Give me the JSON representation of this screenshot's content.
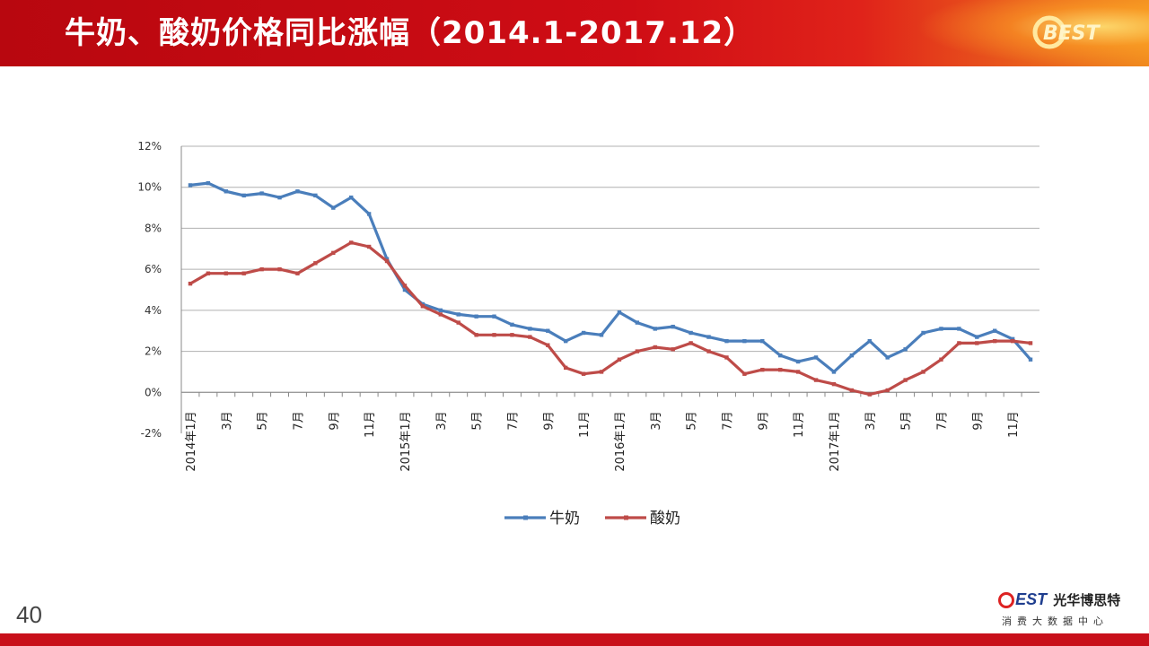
{
  "slide": {
    "title": "牛奶、酸奶价格同比涨幅（2014.1-2017.12）",
    "page_number": "40",
    "brand_name": "光华博思特",
    "brand_logo_text": "EST",
    "brand_subtitle": "消费大数据中心",
    "header_logo_text": "BEST"
  },
  "chart_data": {
    "type": "line",
    "x": [
      "2014年1月",
      "2月",
      "3月",
      "4月",
      "5月",
      "6月",
      "7月",
      "8月",
      "9月",
      "10月",
      "11月",
      "12月",
      "2015年1月",
      "2月",
      "3月",
      "4月",
      "5月",
      "6月",
      "7月",
      "8月",
      "9月",
      "10月",
      "11月",
      "12月",
      "2016年1月",
      "2月",
      "3月",
      "4月",
      "5月",
      "6月",
      "7月",
      "8月",
      "9月",
      "10月",
      "11月",
      "12月",
      "2017年1月",
      "2月",
      "3月",
      "4月",
      "5月",
      "6月",
      "7月",
      "8月",
      "9月",
      "10月",
      "11月",
      "12月"
    ],
    "tick_labels": [
      "2014年1月",
      "",
      "3月",
      "",
      "5月",
      "",
      "7月",
      "",
      "9月",
      "",
      "11月",
      "",
      "2015年1月",
      "",
      "3月",
      "",
      "5月",
      "",
      "7月",
      "",
      "9月",
      "",
      "11月",
      "",
      "2016年1月",
      "",
      "3月",
      "",
      "5月",
      "",
      "7月",
      "",
      "9月",
      "",
      "11月",
      "",
      "2017年1月",
      "",
      "3月",
      "",
      "5月",
      "",
      "7月",
      "",
      "9月",
      "",
      "11月",
      ""
    ],
    "series": [
      {
        "name": "牛奶",
        "color": "#4a7ebb",
        "values": [
          10.1,
          10.2,
          9.8,
          9.6,
          9.7,
          9.5,
          9.8,
          9.6,
          9.0,
          9.5,
          8.7,
          6.5,
          5.0,
          4.3,
          4.0,
          3.8,
          3.7,
          3.7,
          3.3,
          3.1,
          3.0,
          2.5,
          2.9,
          2.8,
          3.9,
          3.4,
          3.1,
          3.2,
          2.9,
          2.7,
          2.5,
          2.5,
          2.5,
          1.8,
          1.5,
          1.7,
          1.0,
          1.8,
          2.5,
          1.7,
          2.1,
          2.9,
          3.1,
          3.1,
          2.7,
          3.0,
          2.6,
          1.6
        ]
      },
      {
        "name": "酸奶",
        "color": "#be4b48",
        "values": [
          5.3,
          5.8,
          5.8,
          5.8,
          6.0,
          6.0,
          5.8,
          6.3,
          6.8,
          7.3,
          7.1,
          6.4,
          5.2,
          4.2,
          3.8,
          3.4,
          2.8,
          2.8,
          2.8,
          2.7,
          2.3,
          1.2,
          0.9,
          1.0,
          1.6,
          2.0,
          2.2,
          2.1,
          2.4,
          2.0,
          1.7,
          0.9,
          1.1,
          1.1,
          1.0,
          0.6,
          0.4,
          0.1,
          -0.1,
          0.1,
          0.6,
          1.0,
          1.6,
          2.4,
          2.4,
          2.5,
          2.5,
          2.4
        ]
      }
    ],
    "y_ticks": [
      "12%",
      "10%",
      "8%",
      "6%",
      "4%",
      "2%",
      "0%",
      "-2%"
    ],
    "ylim": [
      -2,
      12
    ],
    "grid": true,
    "legend_position": "bottom"
  }
}
